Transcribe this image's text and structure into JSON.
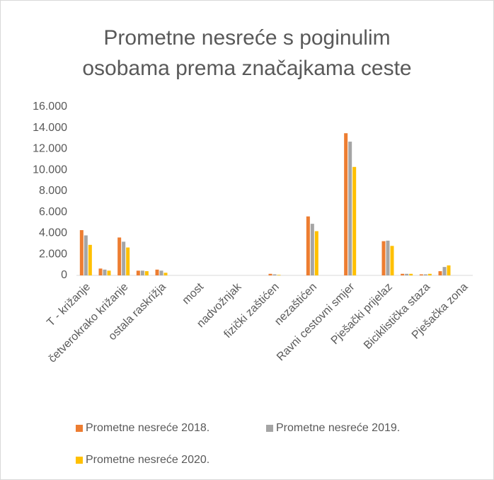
{
  "chart_data": {
    "type": "bar",
    "title": "Prometne nesreće s poginulim osobama prema značajkama ceste",
    "categories": [
      "T - križanje",
      null,
      "četverokrako križanje",
      null,
      "ostala raskrižja",
      null,
      "most",
      null,
      "nadvožnjak",
      null,
      "fizički zaštićen",
      null,
      "nezaštićen",
      null,
      "Ravni cestovni smjer",
      null,
      "Pješački prijelaz",
      null,
      "Biciklistička staza",
      null,
      "Pješačka zona"
    ],
    "series": [
      {
        "name": "Prometne nesreće  2018.",
        "color": "#ed7d31",
        "values": [
          4300,
          650,
          3600,
          450,
          550,
          0,
          0,
          0,
          0,
          0,
          150,
          0,
          5600,
          0,
          13500,
          0,
          3250,
          150,
          100,
          400,
          0
        ]
      },
      {
        "name": "Prometne nesreće  2019.",
        "color": "#a5a5a5",
        "values": [
          3800,
          550,
          3200,
          450,
          450,
          0,
          0,
          0,
          0,
          0,
          100,
          0,
          4900,
          0,
          12700,
          0,
          3300,
          150,
          100,
          800,
          0
        ]
      },
      {
        "name": "Prometne nesreće  2020.",
        "color": "#ffc000",
        "values": [
          2900,
          450,
          2650,
          400,
          250,
          0,
          0,
          0,
          0,
          0,
          50,
          0,
          4200,
          0,
          10300,
          0,
          2800,
          150,
          150,
          950,
          0
        ]
      }
    ],
    "ylim": [
      0,
      16000
    ],
    "yticks": [
      0,
      {
        "value": 2000,
        "label": "2.000"
      },
      {
        "value": 4000,
        "label": "4.000"
      },
      {
        "value": 6000,
        "label": "6.000"
      },
      {
        "value": 8000,
        "label": "8.000"
      },
      {
        "value": 10000,
        "label": "10.000"
      },
      {
        "value": 12000,
        "label": "12.000"
      },
      {
        "value": 14000,
        "label": "14.000"
      },
      {
        "value": 16000,
        "label": "16.000"
      }
    ],
    "grid": false,
    "legend": "bottom"
  }
}
